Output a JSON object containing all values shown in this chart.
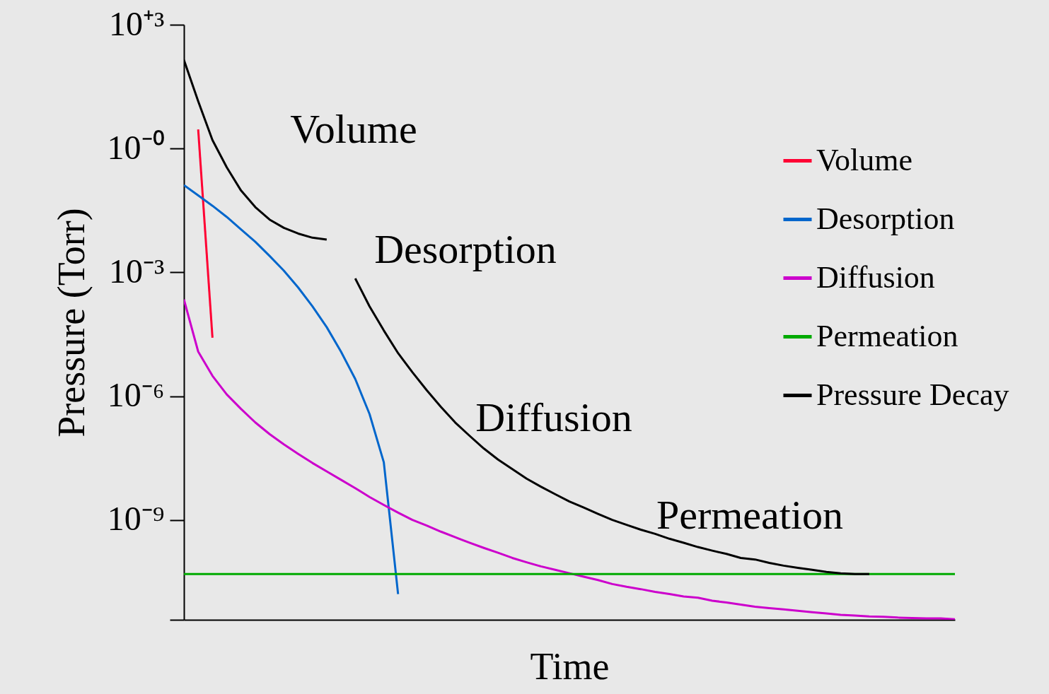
{
  "chart_data": {
    "type": "line",
    "xlabel": "Time",
    "ylabel": "Pressure (Torr)",
    "log": "y",
    "grid": false,
    "legend": "top right",
    "tick_labels": "y",
    "categories": [
      null,
      null,
      null,
      null,
      null,
      null,
      null,
      null,
      null,
      null,
      null,
      null,
      null,
      null,
      null,
      null,
      null,
      null,
      null,
      null,
      null,
      null,
      null,
      null,
      null,
      null,
      null,
      null,
      null,
      null,
      null,
      null,
      null,
      null,
      null,
      null,
      null,
      null,
      null,
      null,
      null,
      null,
      null,
      null,
      null,
      null,
      null,
      null,
      null,
      null,
      null,
      null,
      null,
      null,
      null
    ],
    "ylim": [
      3.8e-12,
      1000
    ],
    "yticks": [
      {
        "value": 1000,
        "label": "10⁺³"
      },
      {
        "value": 1,
        "label": "10⁻⁰"
      },
      {
        "value": 0.001,
        "label": "10⁻³"
      },
      {
        "value": 1e-06,
        "label": "10⁻⁶"
      },
      {
        "value": 1e-09,
        "label": "10⁻⁹"
      },
      {
        "value": 3.8e-12,
        "label": null
      }
    ],
    "annotations": [
      "Volume",
      "Desorption",
      "Diffusion",
      "Permeation"
    ],
    "series": [
      {
        "name": "Volume",
        "color": "#ff0033",
        "values": [
          null,
          2.9,
          2.6e-05,
          null,
          null,
          null,
          null,
          null,
          null,
          null,
          null,
          null,
          null,
          null,
          null,
          null,
          null,
          null,
          null,
          null,
          null,
          null,
          null,
          null,
          null,
          null,
          null,
          null,
          null,
          null,
          null,
          null,
          null,
          null,
          null,
          null,
          null,
          null,
          null,
          null,
          null,
          null,
          null,
          null,
          null,
          null,
          null,
          null,
          null,
          null,
          null,
          null,
          null,
          null,
          null
        ]
      },
      {
        "name": "Desorption",
        "color": "#0066cc",
        "values": [
          0.13,
          0.073,
          0.041,
          0.022,
          0.011,
          0.0055,
          0.0025,
          0.0011,
          0.00043,
          0.00015,
          4.7e-05,
          1.2e-05,
          2.6e-06,
          3.7e-07,
          2.5e-08,
          1.6e-11,
          null,
          null,
          null,
          null,
          null,
          null,
          null,
          null,
          null,
          null,
          null,
          null,
          null,
          null,
          null,
          null,
          null,
          null,
          null,
          null,
          null,
          null,
          null,
          null,
          null,
          null,
          null,
          null,
          null,
          null,
          null,
          null,
          null,
          null,
          null,
          null,
          null,
          null,
          null
        ]
      },
      {
        "name": "Diffusion",
        "color": "#cc00cc",
        "values": [
          0.00022,
          1.2e-05,
          3.1e-06,
          1.1e-06,
          4.9e-07,
          2.3e-07,
          1.2e-07,
          6.8e-08,
          4e-08,
          2.4e-08,
          1.5e-08,
          9.4e-09,
          5.9e-09,
          3.6e-09,
          2.3e-09,
          1.5e-09,
          1e-09,
          7.3e-10,
          5.2e-10,
          3.8e-10,
          2.8e-10,
          2.1e-10,
          1.6e-10,
          1.2e-10,
          9.4e-11,
          7.5e-11,
          6.2e-11,
          5.1e-11,
          4.2e-11,
          3.5e-11,
          2.8e-11,
          2.4e-11,
          2.1e-11,
          1.8e-11,
          1.6e-11,
          1.4e-11,
          1.3e-11,
          1.1e-11,
          1e-11,
          8.9e-12,
          7.9e-12,
          7.3e-12,
          6.8e-12,
          6.3e-12,
          5.8e-12,
          5.4e-12,
          5e-12,
          4.8e-12,
          4.6e-12,
          4.5e-12,
          4.3e-12,
          4.2e-12,
          4.1e-12,
          4.1e-12,
          3.9e-12
        ]
      },
      {
        "name": "Permeation",
        "color": "#00aa00",
        "values": [
          4.9e-11,
          4.9e-11,
          4.9e-11,
          4.9e-11,
          4.9e-11,
          4.9e-11,
          4.9e-11,
          4.9e-11,
          4.9e-11,
          4.9e-11,
          4.9e-11,
          4.9e-11,
          4.9e-11,
          4.9e-11,
          4.9e-11,
          4.9e-11,
          4.9e-11,
          4.9e-11,
          4.9e-11,
          4.9e-11,
          4.9e-11,
          4.9e-11,
          4.9e-11,
          4.9e-11,
          4.9e-11,
          4.9e-11,
          4.9e-11,
          4.9e-11,
          4.9e-11,
          4.9e-11,
          4.9e-11,
          4.9e-11,
          4.9e-11,
          4.9e-11,
          4.9e-11,
          4.9e-11,
          4.9e-11,
          4.9e-11,
          4.9e-11,
          4.9e-11,
          4.9e-11,
          4.9e-11,
          4.9e-11,
          4.9e-11,
          4.9e-11,
          4.9e-11,
          4.9e-11,
          4.9e-11,
          4.9e-11,
          4.9e-11,
          4.9e-11,
          4.9e-11,
          4.9e-11,
          4.9e-11,
          4.9e-11
        ]
      },
      {
        "name": "Pressure Decay",
        "color": "#000000",
        "values": [
          140,
          14,
          1.6,
          0.35,
          0.096,
          0.038,
          0.019,
          0.012,
          0.0087,
          0.0069,
          0.0062,
          null,
          0.00071,
          0.00015,
          3.9e-05,
          1.1e-05,
          3.8e-06,
          1.4e-06,
          5.5e-07,
          2.3e-07,
          1.1e-07,
          5.4e-08,
          2.9e-08,
          1.7e-08,
          1e-08,
          6.4e-09,
          4.2e-09,
          2.8e-09,
          2e-09,
          1.4e-09,
          1e-09,
          7.6e-10,
          5.8e-10,
          4.6e-10,
          3.5e-10,
          2.8e-10,
          2.2e-10,
          1.8e-10,
          1.5e-10,
          1.2e-10,
          1.1e-10,
          9.1e-11,
          7.8e-11,
          6.9e-11,
          6.2e-11,
          5.5e-11,
          5.1e-11,
          4.9e-11,
          4.9e-11,
          null,
          null,
          null,
          null,
          null,
          null
        ]
      }
    ]
  }
}
